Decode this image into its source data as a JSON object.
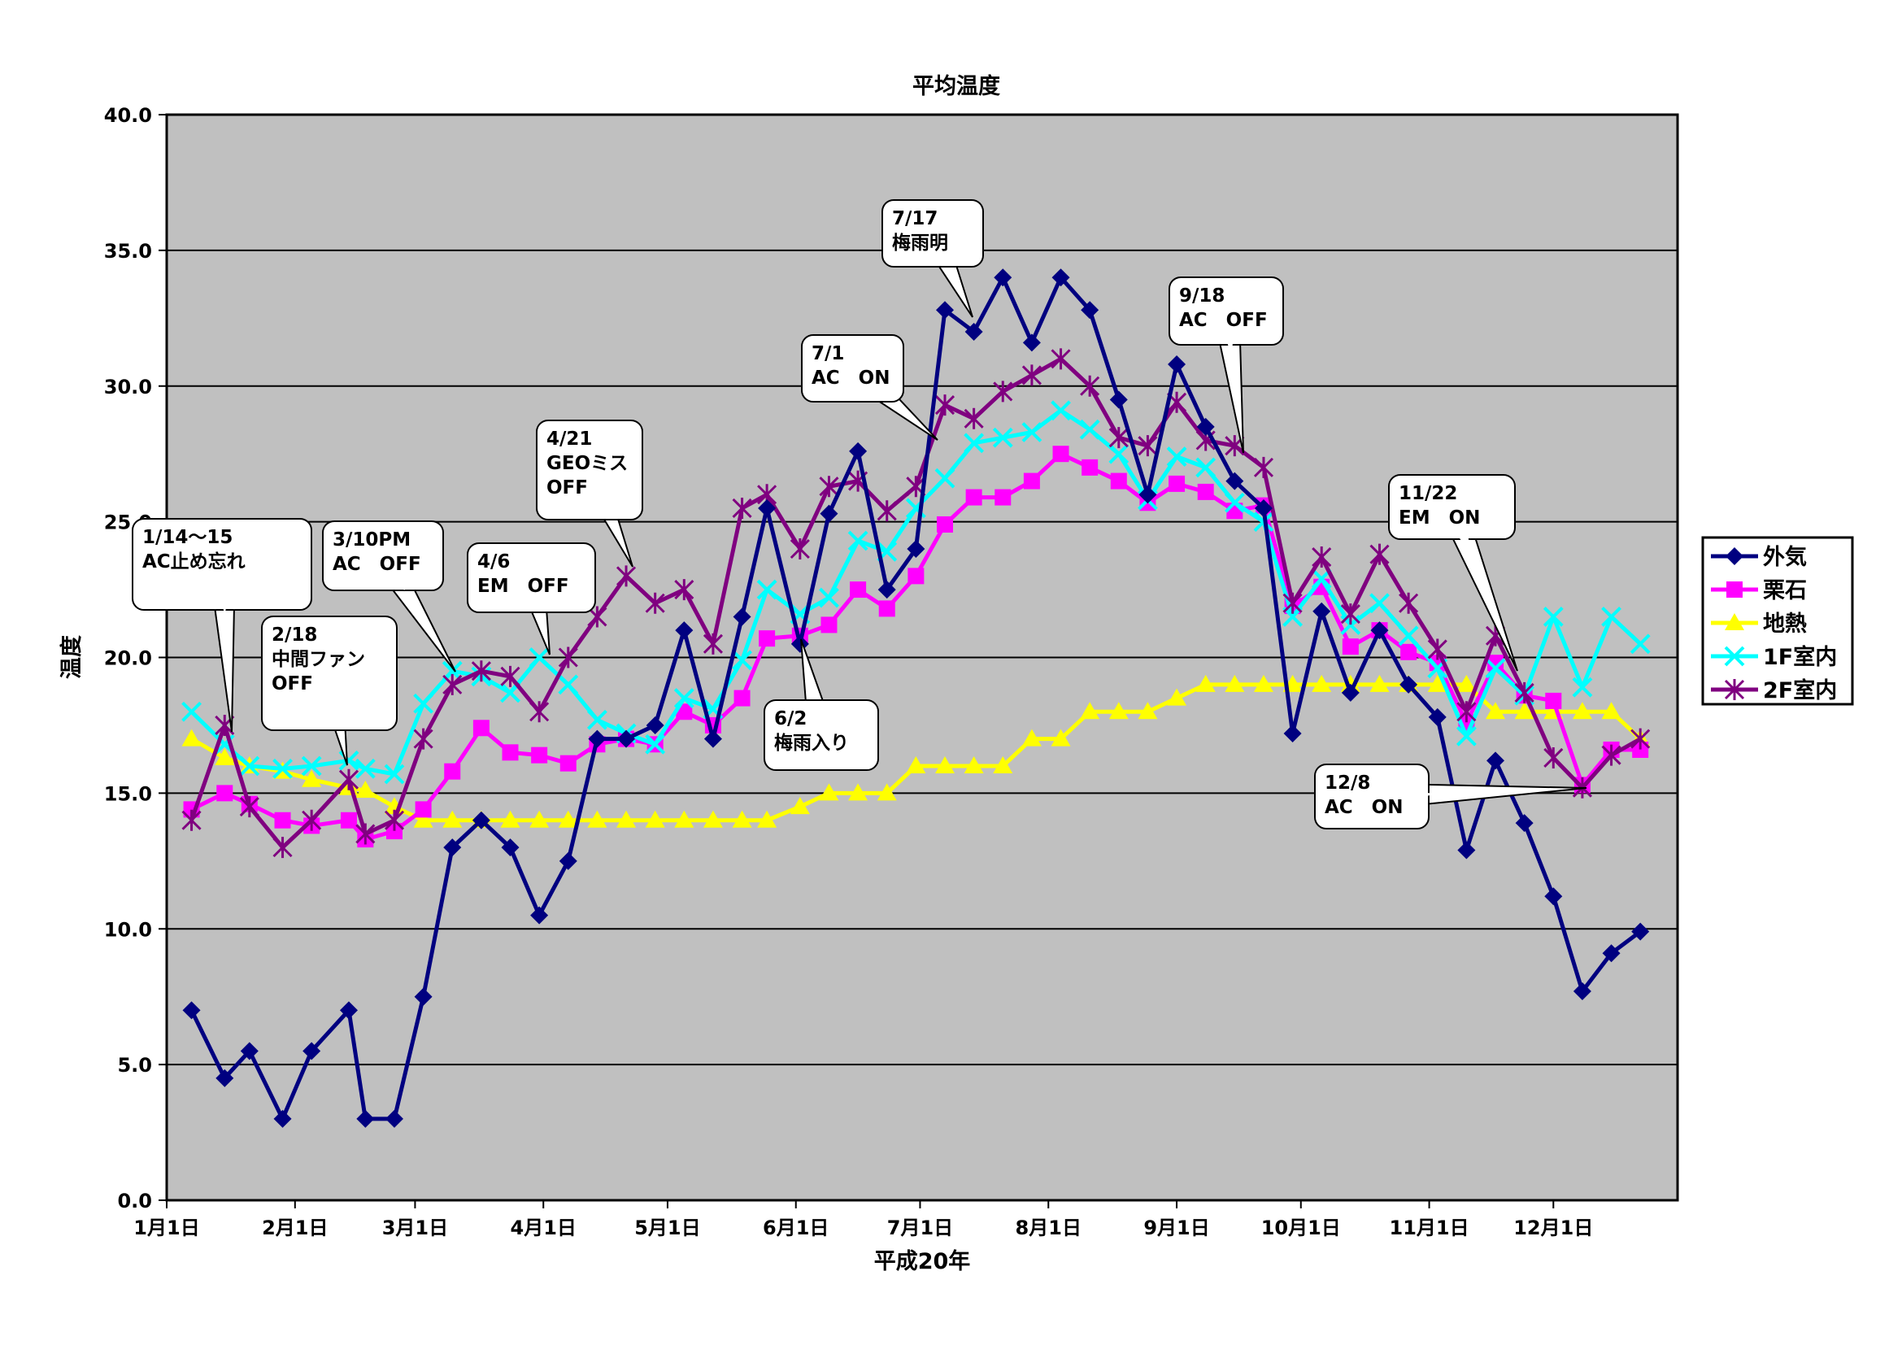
{
  "chart_data": {
    "type": "line",
    "title": "平均温度",
    "xlabel": "平成20年",
    "ylabel": "温度",
    "ylim": [
      0,
      40
    ],
    "yticks": [
      "0.0",
      "5.0",
      "10.0",
      "15.0",
      "20.0",
      "25.0",
      "30.0",
      "35.0",
      "40.0"
    ],
    "x_ticks": [
      {
        "label": "1月1日",
        "day": 1
      },
      {
        "label": "2月1日",
        "day": 32
      },
      {
        "label": "3月1日",
        "day": 61
      },
      {
        "label": "4月1日",
        "day": 92
      },
      {
        "label": "5月1日",
        "day": 122
      },
      {
        "label": "6月1日",
        "day": 153
      },
      {
        "label": "7月1日",
        "day": 183
      },
      {
        "label": "8月1日",
        "day": 214
      },
      {
        "label": "9月1日",
        "day": 245
      },
      {
        "label": "10月1日",
        "day": 275
      },
      {
        "label": "11月1日",
        "day": 306
      },
      {
        "label": "12月1日",
        "day": 336
      }
    ],
    "grid": true,
    "legend_position": "right",
    "x_days": [
      7,
      15,
      21,
      29,
      36,
      45,
      49,
      56,
      63,
      70,
      77,
      84,
      91,
      98,
      105,
      112,
      119,
      126,
      133,
      140,
      146,
      154,
      161,
      168,
      175,
      182,
      189,
      196,
      203,
      210,
      217,
      224,
      231,
      238,
      245,
      252,
      259,
      266,
      273,
      280,
      287,
      294,
      301,
      308,
      315,
      322,
      329,
      336,
      343,
      350,
      357
    ],
    "series": [
      {
        "name": "外気",
        "color": "#000080",
        "marker": "diamond",
        "values": [
          7.0,
          4.5,
          5.5,
          3.0,
          5.5,
          7.0,
          3.0,
          3.0,
          7.5,
          13.0,
          14.0,
          13.0,
          10.5,
          12.5,
          17.0,
          17.0,
          17.5,
          21.0,
          17.0,
          21.5,
          25.5,
          20.5,
          25.3,
          27.6,
          22.5,
          24.0,
          32.8,
          32.0,
          34.0,
          31.6,
          34.0,
          32.8,
          29.5,
          26.0,
          30.8,
          28.5,
          26.5,
          25.5,
          17.2,
          21.7,
          18.7,
          21.0,
          19.0,
          17.8,
          12.9,
          16.2,
          13.9,
          11.2,
          7.7,
          9.1,
          9.9
        ]
      },
      {
        "name": "栗石",
        "color": "#ff00ff",
        "marker": "square",
        "values": [
          14.4,
          15.0,
          14.6,
          14.0,
          13.8,
          14.0,
          13.3,
          13.6,
          14.4,
          15.8,
          17.4,
          16.5,
          16.4,
          16.1,
          16.8,
          17.0,
          16.8,
          18.0,
          17.5,
          18.5,
          20.7,
          20.8,
          21.2,
          22.5,
          21.8,
          23.0,
          24.9,
          25.9,
          25.9,
          26.5,
          27.5,
          27.0,
          26.5,
          25.7,
          26.4,
          26.1,
          25.4,
          25.6,
          21.9,
          22.6,
          20.4,
          21.0,
          20.2,
          19.8,
          17.6,
          19.8,
          18.6,
          18.4,
          15.3,
          16.6,
          16.6
        ]
      },
      {
        "name": "地熱",
        "color": "#ffff00",
        "marker": "triangle",
        "values": [
          17.0,
          16.3,
          16.0,
          15.8,
          15.5,
          15.2,
          15.1,
          14.5,
          14.0,
          14.0,
          14.0,
          14.0,
          14.0,
          14.0,
          14.0,
          14.0,
          14.0,
          14.0,
          14.0,
          14.0,
          14.0,
          14.5,
          15.0,
          15.0,
          15.0,
          16.0,
          16.0,
          16.0,
          16.0,
          17.0,
          17.0,
          18.0,
          18.0,
          18.0,
          18.5,
          19.0,
          19.0,
          19.0,
          19.0,
          19.0,
          19.0,
          19.0,
          19.0,
          19.0,
          19.0,
          18.0,
          18.0,
          18.0,
          18.0,
          18.0,
          17.0
        ]
      },
      {
        "name": "1F室内",
        "color": "#00ffff",
        "marker": "x",
        "values": [
          18.0,
          16.8,
          16.0,
          15.9,
          16.0,
          16.2,
          15.9,
          15.7,
          18.3,
          19.5,
          19.3,
          18.7,
          20.0,
          19.0,
          17.7,
          17.2,
          16.8,
          18.5,
          18.1,
          19.9,
          22.5,
          21.6,
          22.2,
          24.3,
          23.9,
          25.5,
          26.6,
          27.9,
          28.1,
          28.3,
          29.1,
          28.4,
          27.5,
          25.8,
          27.4,
          27.0,
          25.7,
          25.0,
          21.5,
          22.9,
          21.2,
          22.0,
          20.8,
          19.6,
          17.1,
          19.6,
          18.6,
          21.5,
          18.9,
          21.5,
          20.5
        ]
      },
      {
        "name": "2F室内",
        "color": "#800080",
        "marker": "star",
        "values": [
          14.0,
          17.5,
          14.5,
          13.0,
          14.0,
          15.5,
          13.5,
          14.0,
          17.0,
          19.0,
          19.5,
          19.3,
          18.0,
          20.0,
          21.5,
          23.0,
          22.0,
          22.5,
          20.5,
          25.5,
          26.0,
          24.0,
          26.3,
          26.5,
          25.4,
          26.3,
          29.3,
          28.8,
          29.8,
          30.4,
          31.0,
          30.0,
          28.1,
          27.8,
          29.4,
          28.0,
          27.8,
          27.0,
          22.0,
          23.7,
          21.6,
          23.8,
          22.0,
          20.3,
          18.0,
          20.8,
          18.7,
          16.3,
          15.2,
          16.4,
          17.0
        ]
      }
    ],
    "annotations": [
      {
        "text": [
          "1/14～15",
          "AC止め忘れ"
        ]
      },
      {
        "text": [
          "2/18",
          "中間ファン",
          "OFF"
        ]
      },
      {
        "text": [
          "3/10PM",
          "AC　OFF"
        ]
      },
      {
        "text": [
          "4/6",
          "EM　OFF"
        ]
      },
      {
        "text": [
          "4/21",
          "GEOミス",
          "OFF"
        ]
      },
      {
        "text": [
          "6/2",
          "梅雨入り"
        ]
      },
      {
        "text": [
          "7/1",
          "AC　ON"
        ]
      },
      {
        "text": [
          "7/17",
          "梅雨明"
        ]
      },
      {
        "text": [
          "9/18",
          "AC　OFF"
        ]
      },
      {
        "text": [
          "11/22",
          "EM　ON"
        ]
      },
      {
        "text": [
          "12/8",
          "AC　ON"
        ]
      }
    ]
  }
}
